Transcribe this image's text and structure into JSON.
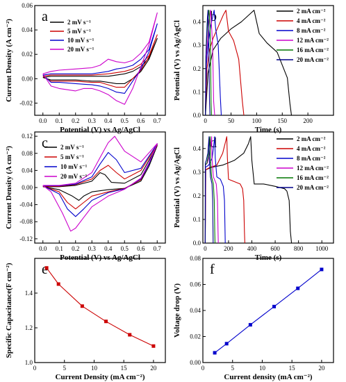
{
  "chart_data": [
    {
      "panel_letter": "a",
      "type": "line",
      "xlabel": "Potential (V) vs Ag/AgCl",
      "ylabel": "Current Density (A cm⁻²)",
      "xlim": [
        -0.05,
        0.75
      ],
      "ylim": [
        -0.03,
        0.06
      ],
      "xticks": [
        0.0,
        0.1,
        0.2,
        0.3,
        0.4,
        0.5,
        0.6,
        0.7
      ],
      "yticks": [
        -0.02,
        0.0,
        0.02,
        0.04,
        0.06
      ],
      "tick_labels_x": [
        "0.0",
        "0.1",
        "0.2",
        "0.3",
        "0.4",
        "0.5",
        "0.6",
        "0.7"
      ],
      "tick_labels_y": [
        "-0.02",
        "0.00",
        "0.02",
        "0.04",
        "0.06"
      ],
      "legend_position": "top-left",
      "series": [
        {
          "name": "2  mV s⁻¹",
          "color": "#000000",
          "x": [
            0.0,
            0.05,
            0.1,
            0.2,
            0.3,
            0.4,
            0.5,
            0.55,
            0.6,
            0.65,
            0.7,
            0.65,
            0.6,
            0.55,
            0.5,
            0.45,
            0.4,
            0.35,
            0.3,
            0.2,
            0.1,
            0.05,
            0.0
          ],
          "y": [
            0.001,
            0.002,
            0.002,
            0.002,
            0.002,
            0.002,
            0.004,
            0.006,
            0.01,
            0.017,
            0.033,
            0.016,
            0.006,
            0.0,
            -0.004,
            -0.004,
            -0.003,
            -0.002,
            -0.002,
            -0.001,
            -0.001,
            -0.001,
            0.001
          ]
        },
        {
          "name": "5  mV s⁻¹",
          "color": "#cc0000",
          "x": [
            0.0,
            0.05,
            0.1,
            0.2,
            0.3,
            0.4,
            0.5,
            0.55,
            0.6,
            0.65,
            0.7,
            0.65,
            0.6,
            0.55,
            0.5,
            0.45,
            0.4,
            0.35,
            0.3,
            0.2,
            0.1,
            0.05,
            0.0
          ],
          "y": [
            0.002,
            0.003,
            0.003,
            0.003,
            0.003,
            0.004,
            0.006,
            0.008,
            0.012,
            0.019,
            0.036,
            0.018,
            0.007,
            0.0,
            -0.007,
            -0.007,
            -0.005,
            -0.003,
            -0.003,
            -0.002,
            -0.002,
            -0.002,
            0.002
          ]
        },
        {
          "name": "10 mV s⁻¹",
          "color": "#0000cc",
          "x": [
            0.0,
            0.05,
            0.1,
            0.2,
            0.3,
            0.4,
            0.45,
            0.5,
            0.55,
            0.6,
            0.65,
            0.7,
            0.65,
            0.6,
            0.55,
            0.5,
            0.45,
            0.4,
            0.35,
            0.3,
            0.2,
            0.1,
            0.05,
            0.0
          ],
          "y": [
            0.003,
            0.004,
            0.004,
            0.004,
            0.004,
            0.006,
            0.008,
            0.009,
            0.011,
            0.016,
            0.024,
            0.045,
            0.022,
            0.008,
            -0.002,
            -0.012,
            -0.011,
            -0.008,
            -0.006,
            -0.005,
            -0.004,
            -0.003,
            -0.003,
            0.003
          ]
        },
        {
          "name": "20 mV s⁻¹",
          "color": "#cc00cc",
          "x": [
            0.0,
            0.05,
            0.1,
            0.2,
            0.3,
            0.35,
            0.4,
            0.45,
            0.5,
            0.55,
            0.6,
            0.65,
            0.7,
            0.65,
            0.6,
            0.55,
            0.5,
            0.45,
            0.4,
            0.35,
            0.3,
            0.25,
            0.2,
            0.1,
            0.05,
            0.0
          ],
          "y": [
            0.004,
            0.006,
            0.007,
            0.008,
            0.009,
            0.011,
            0.016,
            0.014,
            0.013,
            0.015,
            0.021,
            0.03,
            0.054,
            0.028,
            0.01,
            -0.008,
            -0.021,
            -0.018,
            -0.013,
            -0.01,
            -0.008,
            -0.008,
            -0.01,
            -0.008,
            -0.006,
            0.004
          ]
        }
      ]
    },
    {
      "panel_letter": "b",
      "type": "line",
      "xlabel": "Time (s)",
      "ylabel": "Potential (V) vs Ag/AgCl",
      "xlim": [
        -5,
        250
      ],
      "ylim": [
        0.0,
        0.47
      ],
      "xticks": [
        0,
        50,
        100,
        150,
        200
      ],
      "yticks": [
        0.0,
        0.1,
        0.2,
        0.3,
        0.4
      ],
      "tick_labels_x": [
        "0",
        "50",
        "100",
        "150",
        "200"
      ],
      "tick_labels_y": [
        "0.0",
        "0.1",
        "0.2",
        "0.3",
        "0.4"
      ],
      "legend_position": "right",
      "series": [
        {
          "name": "2  mA cm⁻²",
          "color": "#000000",
          "x": [
            0,
            5,
            15,
            30,
            50,
            70,
            85,
            95,
            105,
            120,
            140,
            160,
            165,
            168
          ],
          "y": [
            0.0,
            0.18,
            0.28,
            0.33,
            0.37,
            0.4,
            0.43,
            0.45,
            0.35,
            0.31,
            0.27,
            0.16,
            0.05,
            0.0
          ]
        },
        {
          "name": "4  mA cm⁻²",
          "color": "#cc0000",
          "x": [
            0,
            3,
            8,
            15,
            25,
            35,
            40,
            45,
            55,
            65,
            72,
            75
          ],
          "y": [
            0.0,
            0.2,
            0.28,
            0.33,
            0.38,
            0.43,
            0.45,
            0.36,
            0.32,
            0.24,
            0.06,
            0.0
          ]
        },
        {
          "name": "8  mA cm⁻²",
          "color": "#0000cc",
          "x": [
            0,
            2,
            5,
            10,
            15,
            17,
            20,
            25,
            29,
            31
          ],
          "y": [
            0.0,
            0.22,
            0.3,
            0.38,
            0.43,
            0.45,
            0.37,
            0.3,
            0.08,
            0.0
          ]
        },
        {
          "name": "12 mA cm⁻²",
          "color": "#cc00cc",
          "x": [
            0,
            1.5,
            4,
            7,
            10,
            12,
            14,
            16,
            18
          ],
          "y": [
            0.0,
            0.24,
            0.32,
            0.4,
            0.45,
            0.38,
            0.3,
            0.06,
            0.0
          ]
        },
        {
          "name": "16 mA cm⁻²",
          "color": "#007700",
          "x": [
            0,
            1,
            3,
            5,
            7,
            9,
            10,
            11,
            12
          ],
          "y": [
            0.0,
            0.25,
            0.35,
            0.42,
            0.45,
            0.38,
            0.25,
            0.05,
            0.0
          ]
        },
        {
          "name": "20 mA cm⁻²",
          "color": "#000088",
          "x": [
            0,
            1,
            2,
            4,
            5,
            6,
            7,
            8,
            9
          ],
          "y": [
            0.0,
            0.25,
            0.33,
            0.42,
            0.45,
            0.38,
            0.25,
            0.05,
            0.0
          ]
        }
      ]
    },
    {
      "panel_letter": "c",
      "type": "line",
      "xlabel": "Potential (V) vs Ag/AgCl",
      "ylabel": "Current Density (A cm⁻²)",
      "xlim": [
        -0.05,
        0.75
      ],
      "ylim": [
        -0.13,
        0.13
      ],
      "xticks": [
        0.0,
        0.1,
        0.2,
        0.3,
        0.4,
        0.5,
        0.6,
        0.7
      ],
      "yticks": [
        -0.12,
        -0.08,
        -0.04,
        0.0,
        0.04,
        0.08,
        0.12
      ],
      "tick_labels_x": [
        "0.0",
        "0.1",
        "0.2",
        "0.3",
        "0.4",
        "0.5",
        "0.6",
        "0.7"
      ],
      "tick_labels_y": [
        "-0.12",
        "-0.08",
        "-0.04",
        "0.00",
        "0.04",
        "0.08",
        "0.12"
      ],
      "legend_position": "top-left",
      "series": [
        {
          "name": "2  mV s⁻¹",
          "color": "#000000",
          "x": [
            0.0,
            0.1,
            0.2,
            0.3,
            0.35,
            0.38,
            0.42,
            0.5,
            0.6,
            0.7,
            0.65,
            0.6,
            0.5,
            0.4,
            0.3,
            0.25,
            0.22,
            0.18,
            0.1,
            0.0
          ],
          "y": [
            0.002,
            0.002,
            0.005,
            0.015,
            0.035,
            0.03,
            0.012,
            0.01,
            0.03,
            0.098,
            0.05,
            0.015,
            -0.002,
            -0.005,
            -0.01,
            -0.02,
            -0.03,
            -0.02,
            -0.005,
            0.002
          ]
        },
        {
          "name": "5  mV s⁻¹",
          "color": "#cc0000",
          "x": [
            0.0,
            0.1,
            0.2,
            0.3,
            0.35,
            0.4,
            0.45,
            0.5,
            0.6,
            0.7,
            0.65,
            0.6,
            0.5,
            0.4,
            0.3,
            0.25,
            0.2,
            0.15,
            0.1,
            0.0
          ],
          "y": [
            0.003,
            0.003,
            0.007,
            0.02,
            0.04,
            0.052,
            0.035,
            0.02,
            0.04,
            0.1,
            0.055,
            0.018,
            -0.002,
            -0.01,
            -0.02,
            -0.035,
            -0.05,
            -0.035,
            -0.01,
            0.003
          ]
        },
        {
          "name": "10 mV s⁻¹",
          "color": "#0000cc",
          "x": [
            0.0,
            0.1,
            0.2,
            0.3,
            0.35,
            0.4,
            0.45,
            0.5,
            0.6,
            0.7,
            0.65,
            0.6,
            0.5,
            0.4,
            0.3,
            0.25,
            0.2,
            0.15,
            0.1,
            0.0
          ],
          "y": [
            0.004,
            0.004,
            0.008,
            0.025,
            0.055,
            0.082,
            0.065,
            0.035,
            0.045,
            0.102,
            0.055,
            0.02,
            -0.003,
            -0.012,
            -0.03,
            -0.05,
            -0.068,
            -0.05,
            -0.015,
            0.004
          ]
        },
        {
          "name": "20 mV s⁻¹",
          "color": "#cc00cc",
          "x": [
            0.0,
            0.1,
            0.2,
            0.3,
            0.35,
            0.4,
            0.44,
            0.5,
            0.6,
            0.7,
            0.65,
            0.6,
            0.5,
            0.4,
            0.3,
            0.25,
            0.2,
            0.17,
            0.12,
            0.05,
            0.0
          ],
          "y": [
            0.005,
            0.005,
            0.01,
            0.035,
            0.07,
            0.105,
            0.12,
            0.085,
            0.06,
            0.103,
            0.058,
            0.022,
            -0.004,
            -0.02,
            -0.045,
            -0.07,
            -0.095,
            -0.102,
            -0.06,
            -0.01,
            0.005
          ]
        }
      ]
    },
    {
      "panel_letter": "d",
      "type": "line",
      "xlabel": "Time (s)",
      "ylabel": "Potential (V) vs Ag/AgCl",
      "xlim": [
        -20,
        1100
      ],
      "ylim": [
        0.0,
        0.47
      ],
      "xticks": [
        0,
        200,
        400,
        600,
        800,
        1000
      ],
      "yticks": [
        0.0,
        0.1,
        0.2,
        0.3,
        0.4
      ],
      "tick_labels_x": [
        "0",
        "200",
        "400",
        "600",
        "800",
        "1000"
      ],
      "tick_labels_y": [
        "0.0",
        "0.1",
        "0.2",
        "0.3",
        "0.4"
      ],
      "legend_position": "right",
      "series": [
        {
          "name": "2  mA cm⁻²",
          "color": "#000000",
          "x": [
            0,
            5,
            50,
            150,
            250,
            330,
            370,
            390,
            400,
            420,
            500,
            600,
            680,
            700,
            720,
            730,
            740
          ],
          "y": [
            0.0,
            0.31,
            0.32,
            0.33,
            0.35,
            0.38,
            0.42,
            0.45,
            0.35,
            0.25,
            0.25,
            0.24,
            0.23,
            0.22,
            0.18,
            0.05,
            0.0
          ]
        },
        {
          "name": "4  mA cm⁻²",
          "color": "#cc0000",
          "x": [
            0,
            3,
            40,
            100,
            150,
            170,
            185,
            190,
            200,
            250,
            300,
            320,
            330,
            336,
            340
          ],
          "y": [
            0.0,
            0.31,
            0.32,
            0.33,
            0.38,
            0.42,
            0.45,
            0.36,
            0.27,
            0.26,
            0.25,
            0.23,
            0.18,
            0.05,
            0.0
          ]
        },
        {
          "name": "8  mA cm⁻²",
          "color": "#0000cc",
          "x": [
            0,
            2,
            30,
            60,
            75,
            82,
            86,
            100,
            130,
            155,
            165,
            170,
            172
          ],
          "y": [
            0.0,
            0.32,
            0.33,
            0.36,
            0.42,
            0.45,
            0.36,
            0.28,
            0.27,
            0.24,
            0.18,
            0.05,
            0.0
          ]
        },
        {
          "name": "12 mA cm⁻²",
          "color": "#cc00cc",
          "x": [
            0,
            2,
            20,
            40,
            50,
            55,
            58,
            70,
            95,
            105,
            110,
            112
          ],
          "y": [
            0.0,
            0.33,
            0.34,
            0.38,
            0.43,
            0.45,
            0.36,
            0.28,
            0.25,
            0.18,
            0.05,
            0.0
          ]
        },
        {
          "name": "16 mA cm⁻²",
          "color": "#007700",
          "x": [
            0,
            1,
            15,
            30,
            38,
            42,
            44,
            55,
            70,
            78,
            82,
            84
          ],
          "y": [
            0.0,
            0.33,
            0.34,
            0.38,
            0.43,
            0.45,
            0.36,
            0.28,
            0.25,
            0.18,
            0.05,
            0.0
          ]
        },
        {
          "name": "20 mA cm⁻²",
          "color": "#000088",
          "x": [
            0,
            1,
            10,
            22,
            30,
            33,
            35,
            45,
            58,
            64,
            67,
            68
          ],
          "y": [
            0.0,
            0.34,
            0.35,
            0.38,
            0.43,
            0.45,
            0.36,
            0.28,
            0.25,
            0.18,
            0.05,
            0.0
          ]
        }
      ]
    },
    {
      "panel_letter": "e",
      "type": "line",
      "xlabel": "Current Density (mA cm⁻²)",
      "ylabel": "Specific Capacitance(F cm⁻²)",
      "xlim": [
        0,
        22
      ],
      "ylim": [
        1.0,
        1.6
      ],
      "xticks": [
        0,
        5,
        10,
        15,
        20
      ],
      "yticks": [
        1.0,
        1.2,
        1.4
      ],
      "tick_labels_x": [
        "0",
        "5",
        "10",
        "15",
        "20"
      ],
      "tick_labels_y": [
        "1.0",
        "1.2",
        "1.4"
      ],
      "series": [
        {
          "name": "",
          "color": "#cc0000",
          "marker": "square",
          "x": [
            2,
            4,
            8,
            12,
            16,
            20
          ],
          "y": [
            1.545,
            1.452,
            1.325,
            1.237,
            1.16,
            1.095
          ]
        }
      ]
    },
    {
      "panel_letter": "f",
      "type": "line",
      "xlabel": "Current density (mA cm⁻²)",
      "ylabel": "Voltage drop (V)",
      "xlim": [
        0,
        22
      ],
      "ylim": [
        0.0,
        0.08
      ],
      "xticks": [
        0,
        5,
        10,
        15,
        20
      ],
      "yticks": [
        0.0,
        0.02,
        0.04,
        0.06,
        0.08
      ],
      "tick_labels_x": [
        "0",
        "5",
        "10",
        "15",
        "20"
      ],
      "tick_labels_y": [
        "0.00",
        "0.02",
        "0.04",
        "0.06",
        "0.08"
      ],
      "series": [
        {
          "name": "",
          "color": "#0000cc",
          "marker": "square",
          "x": [
            2,
            4,
            8,
            12,
            16,
            20
          ],
          "y": [
            0.0075,
            0.0145,
            0.029,
            0.043,
            0.057,
            0.0715
          ]
        }
      ]
    }
  ]
}
